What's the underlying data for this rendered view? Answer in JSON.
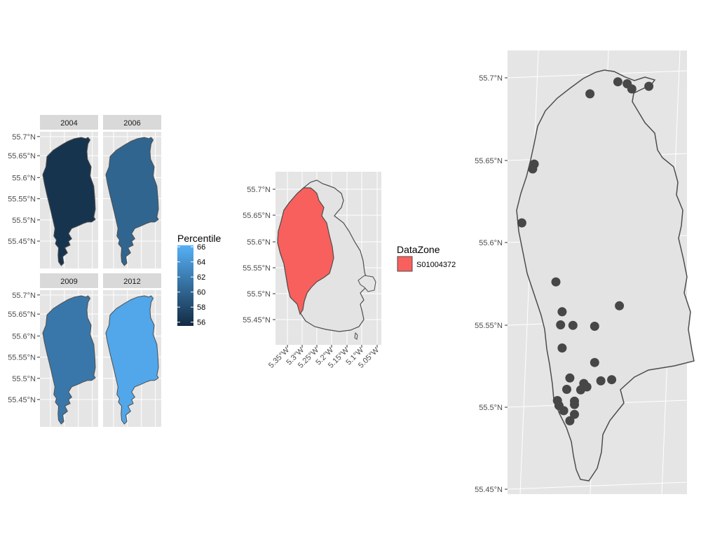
{
  "colors": {
    "panel_bg": "#e5e5e5",
    "grid": "#ffffff",
    "strip_bg": "#d9d9d9",
    "outline": "#4d4d4d",
    "land": "#e3e3e3",
    "datazone_fill": "#f8605d",
    "point": "#474747",
    "scale_low": "#132b43",
    "scale_high": "#56b1f7"
  },
  "facets": {
    "panels": [
      {
        "label": "2004",
        "percentile": 56.2
      },
      {
        "label": "2006",
        "percentile": 60.1
      },
      {
        "label": "2009",
        "percentile": 61.6
      },
      {
        "label": "2012",
        "percentile": 65.4
      }
    ],
    "lat_ticks": [
      "55.7°N",
      "55.65°N",
      "55.6°N",
      "55.55°N",
      "55.5°N",
      "55.45°N"
    ]
  },
  "percentile_legend": {
    "title": "Percentile",
    "min": 55.5,
    "max": 66.2,
    "breaks": [
      "66",
      "64",
      "62",
      "60",
      "58",
      "56"
    ]
  },
  "middle_map": {
    "lat_ticks": [
      "55.7°N",
      "55.65°N",
      "55.6°N",
      "55.55°N",
      "55.5°N",
      "55.45°N"
    ],
    "lon_ticks": [
      "5.35°W",
      "5.3°W",
      "5.25°W",
      "5.2°W",
      "5.15°W",
      "5.1°W",
      "5.05°W"
    ]
  },
  "datazone_legend": {
    "title": "DataZone",
    "entries": [
      {
        "label": "S01004372",
        "color": "#f8605d"
      }
    ]
  },
  "right_map": {
    "lat_ticks": [
      "55.7°N",
      "55.65°N",
      "55.6°N",
      "55.55°N",
      "55.5°N",
      "55.45°N"
    ],
    "points": [
      {
        "lon": -5.198,
        "lat": 55.7
      },
      {
        "lon": -5.192,
        "lat": 55.699
      },
      {
        "lon": -5.189,
        "lat": 55.696
      },
      {
        "lon": -5.178,
        "lat": 55.698
      },
      {
        "lon": -5.216,
        "lat": 55.692
      },
      {
        "lon": -5.252,
        "lat": 55.648
      },
      {
        "lon": -5.253,
        "lat": 55.645
      },
      {
        "lon": -5.26,
        "lat": 55.612
      },
      {
        "lon": -5.238,
        "lat": 55.577
      },
      {
        "lon": -5.234,
        "lat": 55.559
      },
      {
        "lon": -5.235,
        "lat": 55.551
      },
      {
        "lon": -5.227,
        "lat": 55.551
      },
      {
        "lon": -5.213,
        "lat": 55.551
      },
      {
        "lon": -5.197,
        "lat": 55.564
      },
      {
        "lon": -5.234,
        "lat": 55.537
      },
      {
        "lon": -5.213,
        "lat": 55.529
      },
      {
        "lon": -5.229,
        "lat": 55.519
      },
      {
        "lon": -5.209,
        "lat": 55.518
      },
      {
        "lon": -5.202,
        "lat": 55.519
      },
      {
        "lon": -5.22,
        "lat": 55.516
      },
      {
        "lon": -5.218,
        "lat": 55.514
      },
      {
        "lon": -5.222,
        "lat": 55.512
      },
      {
        "lon": -5.231,
        "lat": 55.512
      },
      {
        "lon": -5.226,
        "lat": 55.505
      },
      {
        "lon": -5.226,
        "lat": 55.503
      },
      {
        "lon": -5.237,
        "lat": 55.505
      },
      {
        "lon": -5.236,
        "lat": 55.502
      },
      {
        "lon": -5.233,
        "lat": 55.499
      },
      {
        "lon": -5.229,
        "lat": 55.493
      },
      {
        "lon": -5.226,
        "lat": 55.497
      }
    ]
  }
}
